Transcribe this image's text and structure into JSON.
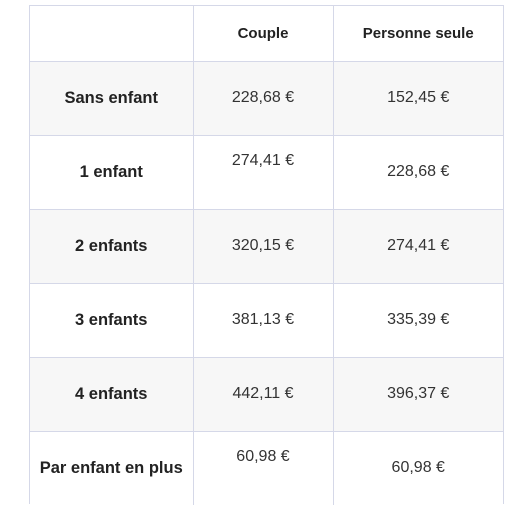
{
  "table": {
    "headers": [
      "",
      "Couple",
      "Personne seule"
    ],
    "rows": [
      {
        "label": "Sans enfant",
        "couple": "228,68 €",
        "single": "152,45 €"
      },
      {
        "label": "1 enfant",
        "couple": "274,41 €",
        "single": "228,68 €"
      },
      {
        "label": "2 enfants",
        "couple": "320,15 €",
        "single": "274,41 €"
      },
      {
        "label": "3 enfants",
        "couple": "381,13 €",
        "single": "335,39 €"
      },
      {
        "label": "4 enfants",
        "couple": "442,11 €",
        "single": "396,37 €"
      },
      {
        "label": "Par enfant en plus",
        "couple": "60,98 €",
        "single": "60,98 €"
      }
    ]
  }
}
